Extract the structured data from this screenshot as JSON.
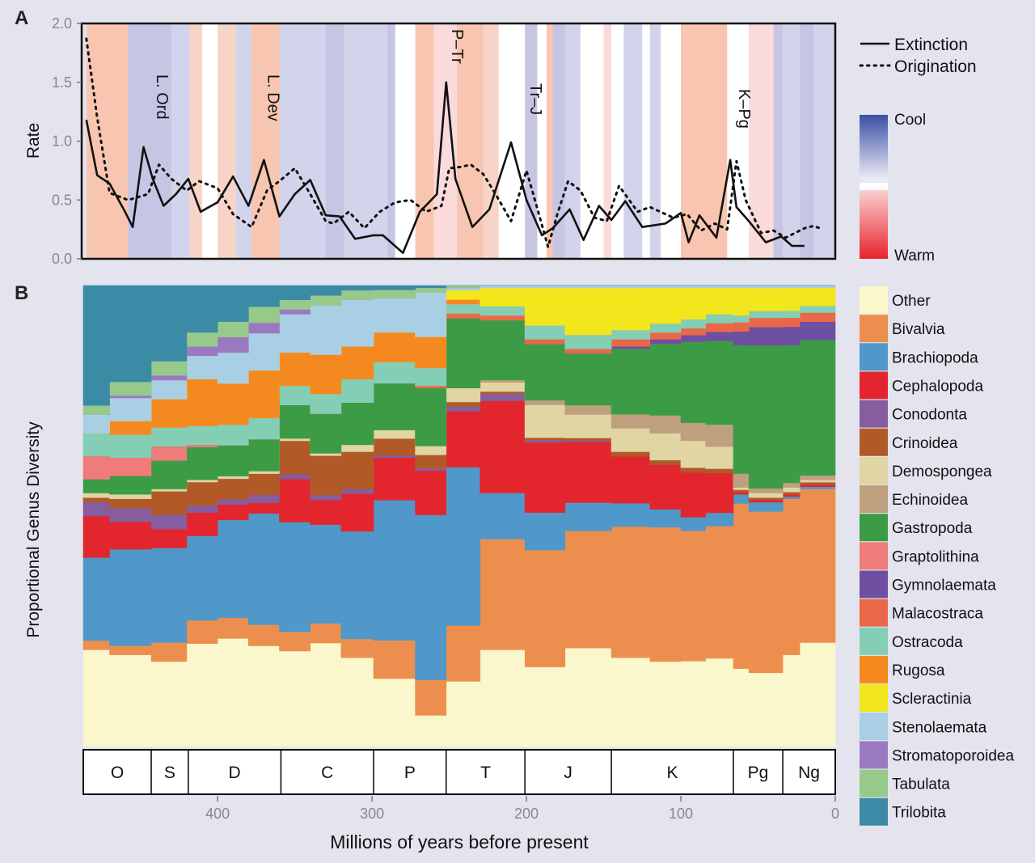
{
  "chart_data": [
    {
      "panel": "A",
      "type": "line",
      "ylabel": "Rate",
      "xlim": [
        487,
        0
      ],
      "ylim": [
        0,
        2.0
      ],
      "y_ticks": [
        "0.0",
        "0.5",
        "1.0",
        "1.5",
        "2.0"
      ],
      "y_tick_values": [
        0,
        0.5,
        1.0,
        1.5,
        2.0
      ],
      "legend": {
        "position": "top-right",
        "entries": [
          "Extinction",
          "Origination"
        ]
      },
      "temperature_legend": {
        "cool": "Cool",
        "warm": "Warm"
      },
      "climate_bands": [
        {
          "start": 485,
          "end": 458,
          "color": "#f8c6b0"
        },
        {
          "start": 458,
          "end": 430,
          "color": "#c6c6e4"
        },
        {
          "start": 430,
          "end": 418,
          "color": "#d2d4ec"
        },
        {
          "start": 418,
          "end": 410,
          "color": "#f8d4c8"
        },
        {
          "start": 410,
          "end": 400,
          "color": "#ffffff"
        },
        {
          "start": 400,
          "end": 388,
          "color": "#f8d4c8"
        },
        {
          "start": 388,
          "end": 378,
          "color": "#d2d4ec"
        },
        {
          "start": 378,
          "end": 360,
          "color": "#f8c6b0"
        },
        {
          "start": 360,
          "end": 330,
          "color": "#d2d4ec"
        },
        {
          "start": 330,
          "end": 318,
          "color": "#c6c6e4"
        },
        {
          "start": 318,
          "end": 290,
          "color": "#d2d4ec"
        },
        {
          "start": 290,
          "end": 285,
          "color": "#c6c6e4"
        },
        {
          "start": 285,
          "end": 272,
          "color": "#ffffff"
        },
        {
          "start": 272,
          "end": 260,
          "color": "#f8c6b0"
        },
        {
          "start": 260,
          "end": 245,
          "color": "#fadada"
        },
        {
          "start": 245,
          "end": 228,
          "color": "#f8c6b0"
        },
        {
          "start": 228,
          "end": 218,
          "color": "#f8d4c8"
        },
        {
          "start": 218,
          "end": 201,
          "color": "#ffffff"
        },
        {
          "start": 201,
          "end": 193,
          "color": "#c6c6e4"
        },
        {
          "start": 193,
          "end": 187,
          "color": "#ffffff"
        },
        {
          "start": 187,
          "end": 183,
          "color": "#f8c6b0"
        },
        {
          "start": 183,
          "end": 175,
          "color": "#c6c6e4"
        },
        {
          "start": 175,
          "end": 165,
          "color": "#d2d4ec"
        },
        {
          "start": 165,
          "end": 150,
          "color": "#ffffff"
        },
        {
          "start": 150,
          "end": 145,
          "color": "#fadada"
        },
        {
          "start": 145,
          "end": 137,
          "color": "#ffffff"
        },
        {
          "start": 137,
          "end": 125,
          "color": "#d2d4ec"
        },
        {
          "start": 125,
          "end": 120,
          "color": "#ffffff"
        },
        {
          "start": 120,
          "end": 113,
          "color": "#d2d4ec"
        },
        {
          "start": 113,
          "end": 100,
          "color": "#ffffff"
        },
        {
          "start": 100,
          "end": 70,
          "color": "#f8c6b0"
        },
        {
          "start": 70,
          "end": 56,
          "color": "#ffffff"
        },
        {
          "start": 56,
          "end": 40,
          "color": "#fadada"
        },
        {
          "start": 40,
          "end": 34,
          "color": "#c6c6e4"
        },
        {
          "start": 34,
          "end": 23,
          "color": "#d2d4ec"
        },
        {
          "start": 23,
          "end": 14,
          "color": "#c6c6e4"
        },
        {
          "start": 14,
          "end": 0,
          "color": "#d2d4ec"
        }
      ],
      "series": [
        {
          "name": "Extinction",
          "style": "solid",
          "x": [
            485,
            478,
            470,
            460,
            455,
            448,
            442,
            435,
            427,
            419,
            411,
            400,
            390,
            380,
            370,
            360,
            350,
            340,
            330,
            321,
            311,
            299,
            293,
            280,
            269,
            258,
            252,
            246,
            235,
            224,
            210,
            200,
            190,
            183,
            172,
            163,
            153,
            145,
            136,
            125,
            110,
            100,
            95,
            88,
            77,
            68,
            64,
            56,
            45,
            35,
            28,
            20
          ],
          "values": [
            1.18,
            0.71,
            0.64,
            0.4,
            0.27,
            0.95,
            0.68,
            0.45,
            0.55,
            0.68,
            0.4,
            0.48,
            0.7,
            0.45,
            0.84,
            0.36,
            0.55,
            0.67,
            0.37,
            0.36,
            0.17,
            0.2,
            0.2,
            0.05,
            0.4,
            0.55,
            1.5,
            0.68,
            0.27,
            0.42,
            0.99,
            0.5,
            0.2,
            0.26,
            0.42,
            0.16,
            0.45,
            0.33,
            0.49,
            0.27,
            0.3,
            0.39,
            0.14,
            0.37,
            0.18,
            0.84,
            0.44,
            0.32,
            0.14,
            0.19,
            0.11,
            0.11
          ]
        },
        {
          "name": "Origination",
          "style": "dotted",
          "x": [
            485,
            478,
            470,
            458,
            445,
            438,
            430,
            420,
            412,
            400,
            390,
            378,
            368,
            360,
            350,
            340,
            330,
            325,
            315,
            305,
            295,
            285,
            275,
            265,
            255,
            250,
            243,
            236,
            228,
            220,
            210,
            200,
            193,
            186,
            180,
            173,
            165,
            156,
            148,
            140,
            128,
            120,
            105,
            96,
            87,
            78,
            70,
            64,
            58,
            48,
            40,
            32,
            20,
            14,
            10
          ],
          "values": [
            1.87,
            1.2,
            0.56,
            0.5,
            0.55,
            0.8,
            0.68,
            0.58,
            0.66,
            0.6,
            0.38,
            0.27,
            0.58,
            0.66,
            0.77,
            0.55,
            0.32,
            0.3,
            0.4,
            0.26,
            0.4,
            0.48,
            0.5,
            0.4,
            0.45,
            0.77,
            0.78,
            0.8,
            0.72,
            0.55,
            0.32,
            0.75,
            0.43,
            0.1,
            0.38,
            0.66,
            0.58,
            0.35,
            0.32,
            0.62,
            0.4,
            0.44,
            0.35,
            0.38,
            0.24,
            0.3,
            0.25,
            0.83,
            0.5,
            0.22,
            0.24,
            0.18,
            0.26,
            0.28,
            0.26
          ]
        }
      ],
      "annotations": [
        {
          "label": "L. Ord",
          "x": 443
        },
        {
          "label": "L. Dev",
          "x": 371
        },
        {
          "label": "P–Tr",
          "x": 252
        },
        {
          "label": "Tr–J",
          "x": 201
        },
        {
          "label": "K–Pg",
          "x": 66
        }
      ]
    },
    {
      "panel": "B",
      "type": "area",
      "stacked": true,
      "normalized": true,
      "ylabel": "Proportional Genus Diversity",
      "xlabel": "Millions of years before present",
      "xlim": [
        487,
        0
      ],
      "x_ticks": [
        "400",
        "300",
        "200",
        "100",
        "0"
      ],
      "x_tick_values": [
        400,
        300,
        200,
        100,
        0
      ],
      "bin_edges": [
        487,
        470,
        443,
        420,
        400,
        380,
        360,
        340,
        320,
        299,
        272,
        252,
        230,
        201,
        175,
        145,
        120,
        100,
        84,
        66,
        56,
        34,
        23,
        0
      ],
      "series": [
        {
          "name": "Other",
          "color": "#fbf7cc",
          "values": [
            21,
            20,
            18,
            22,
            21,
            19,
            20,
            21,
            19,
            16,
            7,
            14,
            21,
            17,
            21,
            19,
            19,
            19,
            20,
            17,
            16,
            20,
            23
          ]
        },
        {
          "name": "Bivalvia",
          "color": "#ec8f4e",
          "values": [
            2,
            2,
            4,
            5,
            4,
            4,
            4,
            4,
            4,
            9,
            8,
            12,
            24,
            25,
            25,
            28,
            30,
            29,
            30,
            36,
            35,
            34,
            34
          ]
        },
        {
          "name": "Brachiopoda",
          "color": "#4f98c9",
          "values": [
            18,
            21,
            20,
            18,
            19,
            21,
            23,
            20,
            23,
            33,
            37,
            34,
            10,
            8,
            6,
            5,
            4,
            3,
            3,
            2,
            2,
            0.5,
            0.5
          ]
        },
        {
          "name": "Cephalopoda",
          "color": "#e3262e",
          "values": [
            9,
            6,
            4,
            5,
            3,
            2,
            9,
            5,
            8,
            10,
            10,
            12,
            20,
            15,
            13,
            10,
            10,
            10,
            9,
            0.5,
            0.5,
            0.5,
            0.5
          ]
        },
        {
          "name": "Conodonta",
          "color": "#865d9e",
          "values": [
            3,
            3,
            3,
            1.5,
            1,
            1.5,
            1,
            1,
            1,
            0.5,
            0.5,
            1,
            1.5,
            0.5,
            0.3,
            0,
            0,
            0,
            0,
            0,
            0,
            0,
            0
          ]
        },
        {
          "name": "Crinoidea",
          "color": "#b15a28",
          "values": [
            1,
            2,
            5,
            5,
            4,
            4,
            7,
            8,
            8,
            4,
            3,
            1,
            0.5,
            0.5,
            0.5,
            1,
            1,
            1,
            1,
            0.5,
            0.5,
            0.5,
            0.5
          ]
        },
        {
          "name": "Demospongea",
          "color": "#e0d5a3",
          "values": [
            1,
            1,
            0.5,
            0.5,
            0.5,
            0.5,
            0.5,
            0.5,
            1.5,
            2,
            2,
            3,
            2,
            7,
            5,
            5,
            6,
            6,
            5,
            0.5,
            1,
            1,
            0.5
          ]
        },
        {
          "name": "Echinoidea",
          "color": "#bfa07e",
          "values": [
            0,
            0,
            0,
            0,
            0,
            0,
            0,
            0,
            0,
            0,
            0,
            0,
            0.5,
            1,
            2,
            3,
            4,
            4,
            5,
            3,
            1,
            1,
            1
          ]
        },
        {
          "name": "Gastropoda",
          "color": "#3b9c45",
          "values": [
            3,
            4,
            6,
            7,
            6,
            6,
            7,
            8,
            9,
            11,
            13,
            15,
            13,
            12,
            11,
            14,
            16,
            18,
            19,
            28,
            31,
            30,
            30
          ]
        },
        {
          "name": "Graptolithina",
          "color": "#ef7b7b",
          "values": [
            5,
            4,
            3,
            0.5,
            0,
            0,
            0,
            0,
            0,
            0,
            0,
            0,
            0,
            0,
            0,
            0,
            0,
            0,
            0,
            0,
            0,
            0,
            0
          ]
        },
        {
          "name": "Gymnolaemata",
          "color": "#6e4fa1",
          "values": [
            0,
            0,
            0,
            0,
            0,
            0,
            0,
            0,
            0,
            0,
            0,
            0,
            0,
            0,
            0,
            0.5,
            1,
            1.5,
            2,
            3,
            4,
            4,
            4
          ]
        },
        {
          "name": "Malacostraca",
          "color": "#e96849",
          "values": [
            0,
            0,
            0,
            0,
            0,
            0,
            0,
            0,
            0,
            0,
            0.5,
            1,
            1,
            1,
            1,
            1.5,
            1.5,
            1.5,
            2,
            2,
            2,
            2,
            2
          ]
        },
        {
          "name": "Ostracoda",
          "color": "#84ceb6",
          "values": [
            5,
            5,
            4,
            4,
            4,
            4,
            4,
            4,
            5,
            5,
            4,
            2,
            2,
            3,
            3,
            2,
            2,
            2,
            2,
            1.5,
            1.5,
            1.5,
            1.5
          ]
        },
        {
          "name": "Rugosa",
          "color": "#f48a1f",
          "values": [
            0,
            3,
            6,
            10,
            8,
            9,
            7,
            8,
            7,
            7,
            7,
            1,
            0,
            0,
            0,
            0,
            0,
            0,
            0,
            0,
            0,
            0,
            0
          ]
        },
        {
          "name": "Scleractinia",
          "color": "#f2e61d",
          "values": [
            0,
            0,
            0,
            0,
            0,
            0,
            0,
            0,
            0,
            0,
            0,
            2,
            4,
            8,
            10,
            9,
            8,
            7,
            6,
            6,
            5,
            5,
            4
          ]
        },
        {
          "name": "Stenolaemata",
          "color": "#a9cfe5",
          "values": [
            4,
            5,
            4,
            5,
            6,
            7,
            8,
            10,
            10,
            8,
            10,
            0.5,
            0.5,
            0.5,
            0.5,
            0.5,
            0.5,
            0.5,
            0.5,
            0.5,
            0.5,
            0.5,
            0.5
          ]
        },
        {
          "name": "Stromatoporoidea",
          "color": "#9b79c1",
          "values": [
            0,
            0.5,
            1,
            2,
            3,
            2,
            1,
            0,
            0,
            0,
            0,
            0,
            0,
            0,
            0,
            0,
            0,
            0,
            0,
            0,
            0,
            0,
            0
          ]
        },
        {
          "name": "Tabulata",
          "color": "#97c98b",
          "values": [
            2,
            3,
            3,
            3,
            3,
            3,
            2,
            2,
            2,
            2,
            1,
            0.5,
            0,
            0,
            0,
            0,
            0,
            0,
            0,
            0,
            0,
            0,
            0
          ]
        },
        {
          "name": "Trilobita",
          "color": "#3b8aa6",
          "values": [
            26,
            21,
            16,
            10,
            7,
            4,
            3,
            2,
            1,
            1,
            0.5,
            0,
            0,
            0,
            0,
            0,
            0,
            0,
            0,
            0,
            0,
            0,
            0
          ]
        }
      ],
      "periods": [
        {
          "label": "O",
          "start": 487,
          "end": 443
        },
        {
          "label": "S",
          "start": 443,
          "end": 419
        },
        {
          "label": "D",
          "start": 419,
          "end": 359
        },
        {
          "label": "C",
          "start": 359,
          "end": 299
        },
        {
          "label": "P",
          "start": 299,
          "end": 252
        },
        {
          "label": "T",
          "start": 252,
          "end": 201
        },
        {
          "label": "J",
          "start": 201,
          "end": 145
        },
        {
          "label": "K",
          "start": 145,
          "end": 66
        },
        {
          "label": "Pg",
          "start": 66,
          "end": 34
        },
        {
          "label": "Ng",
          "start": 34,
          "end": 0
        }
      ]
    }
  ],
  "panel_labels": [
    "A",
    "B"
  ]
}
